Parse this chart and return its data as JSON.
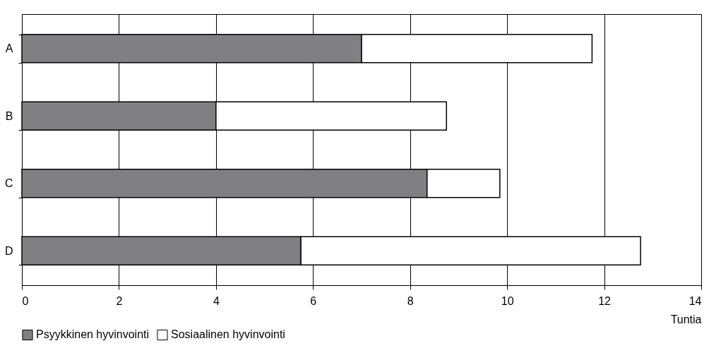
{
  "chart_data": {
    "type": "bar",
    "orientation": "horizontal",
    "stacked": true,
    "xlabel": "Tuntia",
    "categories": [
      "A",
      "B",
      "C",
      "D"
    ],
    "series": [
      {
        "name": "Psyykkinen hyvinvointi",
        "color": "#807f84",
        "values": [
          7,
          4,
          8.35,
          5.75
        ]
      },
      {
        "name": "Sosiaalinen hyvinvointi",
        "color": "#ffffff",
        "values": [
          4.75,
          4.75,
          1.5,
          7
        ]
      }
    ],
    "xlim": [
      0,
      14
    ],
    "xticks": [
      0,
      2,
      4,
      6,
      8,
      10,
      12,
      14
    ],
    "grid": "x",
    "legend": "bottom"
  }
}
